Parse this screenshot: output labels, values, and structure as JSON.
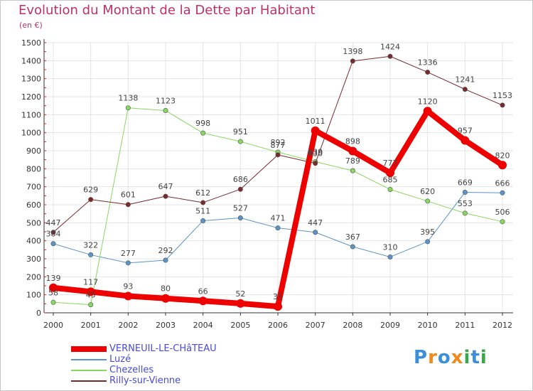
{
  "title": "Evolution du Montant de la Dette par Habitant",
  "subtitle": "(en €)",
  "logo": {
    "text": "Proxiti",
    "letters": [
      {
        "ch": "P",
        "color": "#3a8fd8"
      },
      {
        "ch": "r",
        "color": "#f08a1c"
      },
      {
        "ch": "o",
        "color": "#3a8fd8"
      },
      {
        "ch": "x",
        "color": "#f08a1c"
      },
      {
        "ch": "i",
        "color": "#3aa84a"
      },
      {
        "ch": "t",
        "color": "#3a8fd8"
      },
      {
        "ch": "i",
        "color": "#3aa84a"
      }
    ]
  },
  "chart_data": {
    "type": "line",
    "title": "Evolution du Montant de la Dette par Habitant",
    "ylabel": "(en €)",
    "xlabel": "",
    "x": [
      "2000",
      "2001",
      "2002",
      "2003",
      "2004",
      "2005",
      "2006",
      "2007",
      "2008",
      "2009",
      "2010",
      "2011",
      "2012"
    ],
    "ylim": [
      0,
      1500
    ],
    "yticks": [
      0,
      100,
      200,
      300,
      400,
      500,
      600,
      700,
      800,
      900,
      1000,
      1100,
      1200,
      1300,
      1400,
      1500
    ],
    "grid": true,
    "legend_position": "bottom-left",
    "series": [
      {
        "name": "VERNEUIL-LE-CHâTEAU",
        "color": "#ee0000",
        "width": 8,
        "values": [
          139,
          117,
          93,
          80,
          66,
          52,
          35,
          1011,
          898,
          777,
          1120,
          957,
          820
        ],
        "labels": [
          "139",
          "117",
          "93",
          "80",
          "66",
          "52",
          "35",
          "1011",
          "898",
          "777",
          "1120",
          "957",
          "820"
        ]
      },
      {
        "name": "Luzé",
        "color": "#5b94c8",
        "width": 1,
        "values": [
          384,
          322,
          277,
          292,
          511,
          527,
          471,
          447,
          367,
          310,
          395,
          669,
          666
        ],
        "labels": [
          "384",
          "322",
          "277",
          "292",
          "511",
          "527",
          "471",
          "447",
          "367",
          "310",
          "395",
          "669",
          "666"
        ]
      },
      {
        "name": "Chezelles",
        "color": "#88d860",
        "width": 1,
        "values": [
          58,
          45,
          1138,
          1123,
          998,
          951,
          892,
          839,
          789,
          685,
          620,
          553,
          506
        ],
        "labels": [
          "58",
          "45",
          "1138",
          "1123",
          "998",
          "951",
          "892",
          "839",
          "789",
          "685",
          "620",
          "553",
          "506"
        ]
      },
      {
        "name": "Rilly-sur-Vienne",
        "color": "#7a2a2a",
        "width": 1,
        "values": [
          447,
          629,
          601,
          647,
          612,
          686,
          877,
          830,
          1398,
          1424,
          1336,
          1241,
          1153
        ],
        "labels": [
          "447",
          "629",
          "601",
          "647",
          "612",
          "686",
          "877",
          "830",
          "1398",
          "1424",
          "1336",
          "1241",
          "1153"
        ]
      }
    ]
  }
}
